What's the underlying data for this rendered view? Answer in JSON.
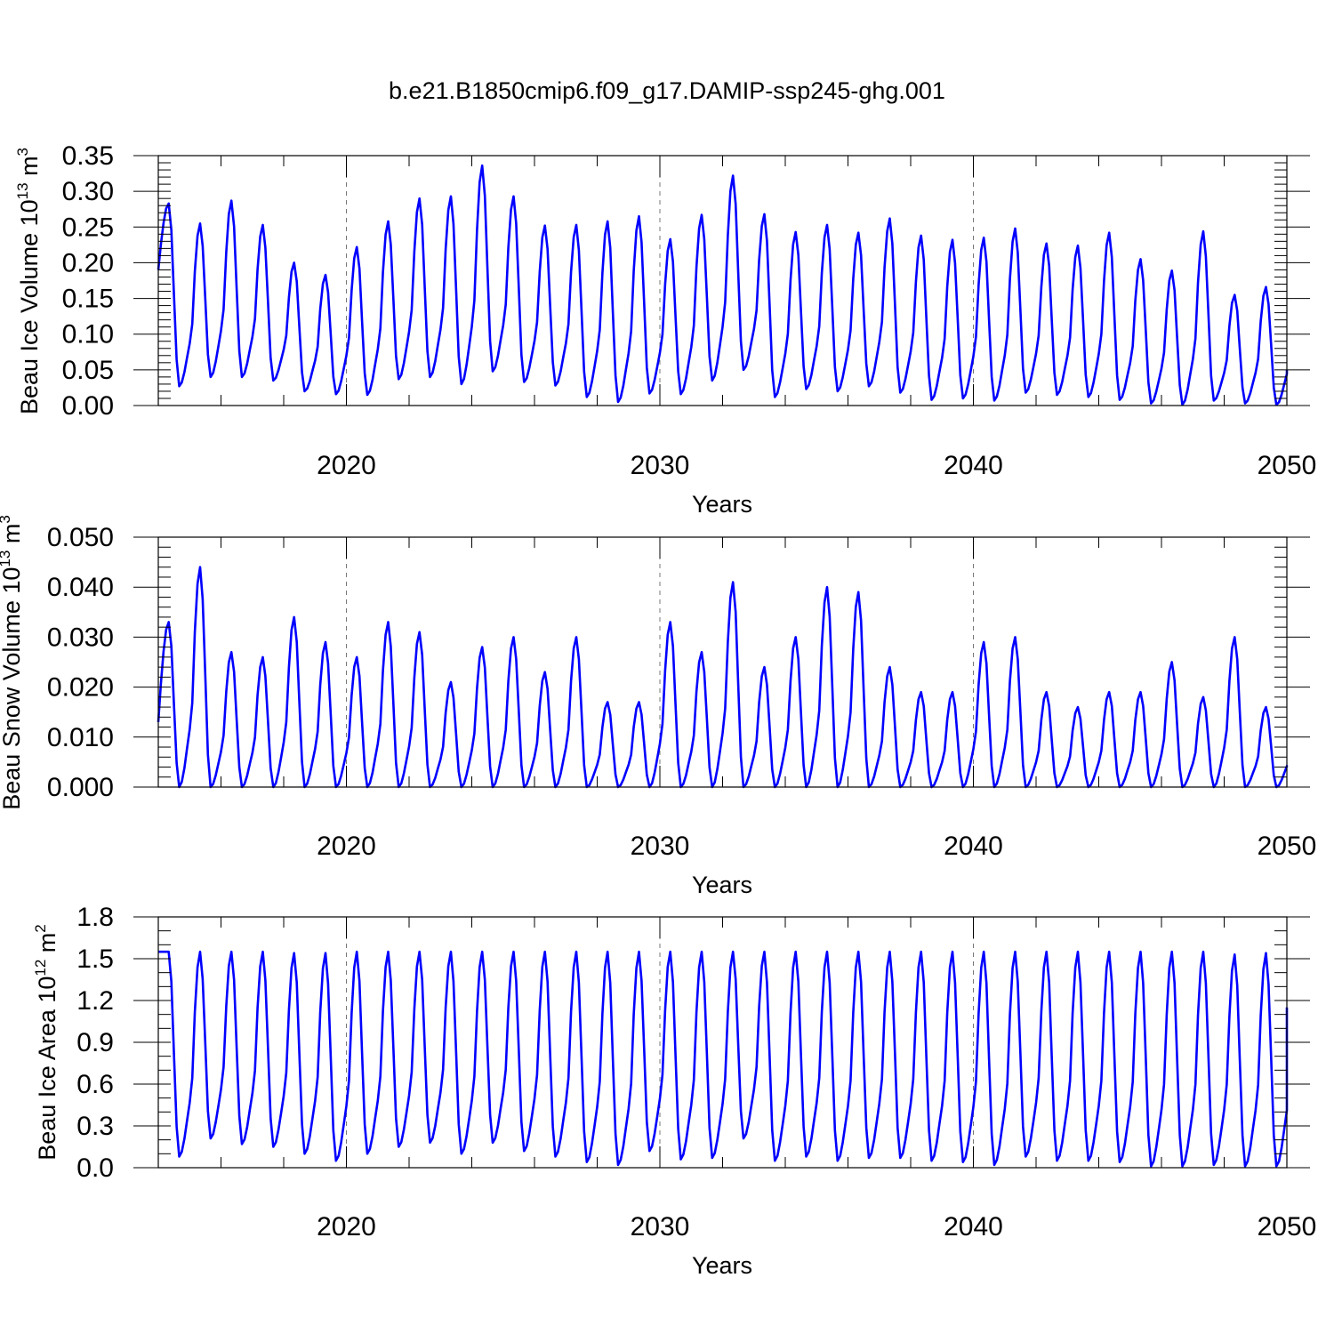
{
  "figure": {
    "title": "b.e21.B1850cmip6.f09_g17.DAMIP-ssp245-ghg.001"
  },
  "colors": {
    "series": "#0000ff",
    "axis": "#000000",
    "grid": "#777777"
  },
  "chart_data": [
    {
      "type": "line",
      "name": "ice-volume",
      "title": "",
      "ylabel": {
        "main": "Beau Ice Volume 10",
        "exp": "13",
        "unit": " m",
        "unit_exp": "3"
      },
      "xlabel": "Years",
      "xlim": [
        2014.0,
        2050.0
      ],
      "ylim": [
        0.0,
        0.35
      ],
      "yticks": [
        0.0,
        0.05,
        0.1,
        0.15,
        0.2,
        0.25,
        0.3,
        0.35
      ],
      "ytick_labels": [
        "0.00",
        "0.05",
        "0.10",
        "0.15",
        "0.20",
        "0.25",
        "0.30",
        "0.35"
      ],
      "yminor_step": 0.01,
      "xticks": [
        2020,
        2030,
        2040,
        2050
      ],
      "xtick_labels": [
        "2020",
        "2030",
        "2040",
        "2050"
      ],
      "grid_x": [
        2020,
        2030,
        2040
      ],
      "series": [
        {
          "name": "Beau Ice Volume",
          "start_year": 2014.0,
          "annual_max": [
            0.283,
            0.255,
            0.287,
            0.253,
            0.2,
            0.183,
            0.222,
            0.258,
            0.29,
            0.293,
            0.336,
            0.293,
            0.252,
            0.253,
            0.258,
            0.265,
            0.233,
            0.267,
            0.322,
            0.268,
            0.243,
            0.253,
            0.242,
            0.262,
            0.238,
            0.232,
            0.235,
            0.248,
            0.227,
            0.224,
            0.242,
            0.205,
            0.189,
            0.244,
            0.155,
            0.166
          ],
          "annual_min": [
            0.027,
            0.04,
            0.04,
            0.035,
            0.02,
            0.016,
            0.015,
            0.037,
            0.04,
            0.03,
            0.048,
            0.033,
            0.028,
            0.012,
            0.005,
            0.017,
            0.016,
            0.035,
            0.05,
            0.012,
            0.023,
            0.02,
            0.027,
            0.018,
            0.008,
            0.01,
            0.007,
            0.018,
            0.015,
            0.012,
            0.008,
            0.003,
            0.001,
            0.007,
            0.003,
            0.001
          ],
          "start_value": 0.19,
          "end_value": 0.05
        }
      ]
    },
    {
      "type": "line",
      "name": "snow-volume",
      "title": "",
      "ylabel": {
        "main": "Beau Snow Volume 10",
        "exp": "13",
        "unit": " m",
        "unit_exp": "3"
      },
      "xlabel": "Years",
      "xlim": [
        2014.0,
        2050.0
      ],
      "ylim": [
        0.0,
        0.05
      ],
      "yticks": [
        0.0,
        0.01,
        0.02,
        0.03,
        0.04,
        0.05
      ],
      "ytick_labels": [
        "0.000",
        "0.010",
        "0.020",
        "0.030",
        "0.040",
        "0.050"
      ],
      "yminor_step": 0.002,
      "xticks": [
        2020,
        2030,
        2040,
        2050
      ],
      "xtick_labels": [
        "2020",
        "2030",
        "2040",
        "2050"
      ],
      "grid_x": [
        2020,
        2030,
        2040
      ],
      "series": [
        {
          "name": "Beau Snow Volume",
          "start_year": 2014.0,
          "annual_max": [
            0.033,
            0.044,
            0.027,
            0.026,
            0.034,
            0.029,
            0.026,
            0.033,
            0.031,
            0.021,
            0.028,
            0.03,
            0.023,
            0.03,
            0.017,
            0.017,
            0.033,
            0.027,
            0.041,
            0.024,
            0.03,
            0.04,
            0.039,
            0.024,
            0.019,
            0.019,
            0.029,
            0.03,
            0.019,
            0.016,
            0.019,
            0.019,
            0.025,
            0.018,
            0.03,
            0.016
          ],
          "annual_min": [
            0.0,
            0.0,
            0.0,
            0.0,
            0.0,
            0.0,
            0.0,
            0.0,
            0.0,
            0.0,
            0.0,
            0.0,
            0.0,
            0.0,
            0.0,
            0.0,
            0.0,
            0.0,
            0.0,
            0.0,
            0.0,
            0.0,
            0.0,
            0.0,
            0.0,
            0.0,
            0.0,
            0.0,
            0.0,
            0.0,
            0.0,
            0.0,
            0.0,
            0.0,
            0.0,
            0.0
          ],
          "start_value": 0.013,
          "end_value": 0.004
        }
      ]
    },
    {
      "type": "line",
      "name": "ice-area",
      "title": "",
      "ylabel": {
        "main": "Beau Ice Area 10",
        "exp": "12",
        "unit": " m",
        "unit_exp": "2"
      },
      "xlabel": "Years",
      "xlim": [
        2014.0,
        2050.0
      ],
      "ylim": [
        0.0,
        1.8
      ],
      "yticks": [
        0.0,
        0.3,
        0.6,
        0.9,
        1.2,
        1.5,
        1.8
      ],
      "ytick_labels": [
        "0.0",
        "0.3",
        "0.6",
        "0.9",
        "1.2",
        "1.5",
        "1.8"
      ],
      "yminor_step": 0.1,
      "xticks": [
        2020,
        2030,
        2040,
        2050
      ],
      "xtick_labels": [
        "2020",
        "2030",
        "2040",
        "2050"
      ],
      "grid_x": [
        2020,
        2030,
        2040
      ],
      "series": [
        {
          "name": "Beau Ice Area",
          "start_year": 2014.0,
          "annual_max": [
            1.55,
            1.55,
            1.55,
            1.55,
            1.54,
            1.54,
            1.55,
            1.55,
            1.55,
            1.55,
            1.55,
            1.55,
            1.55,
            1.55,
            1.55,
            1.55,
            1.55,
            1.55,
            1.55,
            1.55,
            1.55,
            1.55,
            1.55,
            1.55,
            1.55,
            1.55,
            1.55,
            1.55,
            1.55,
            1.55,
            1.55,
            1.55,
            1.55,
            1.55,
            1.53,
            1.54
          ],
          "annual_min": [
            0.08,
            0.21,
            0.17,
            0.15,
            0.1,
            0.05,
            0.1,
            0.15,
            0.18,
            0.1,
            0.18,
            0.12,
            0.08,
            0.04,
            0.02,
            0.12,
            0.06,
            0.07,
            0.21,
            0.05,
            0.08,
            0.05,
            0.07,
            0.07,
            0.05,
            0.04,
            0.02,
            0.08,
            0.05,
            0.05,
            0.04,
            0.01,
            0.01,
            0.02,
            0.01,
            0.01
          ],
          "start_value": 1.55,
          "end_value": 1.15
        }
      ]
    }
  ]
}
